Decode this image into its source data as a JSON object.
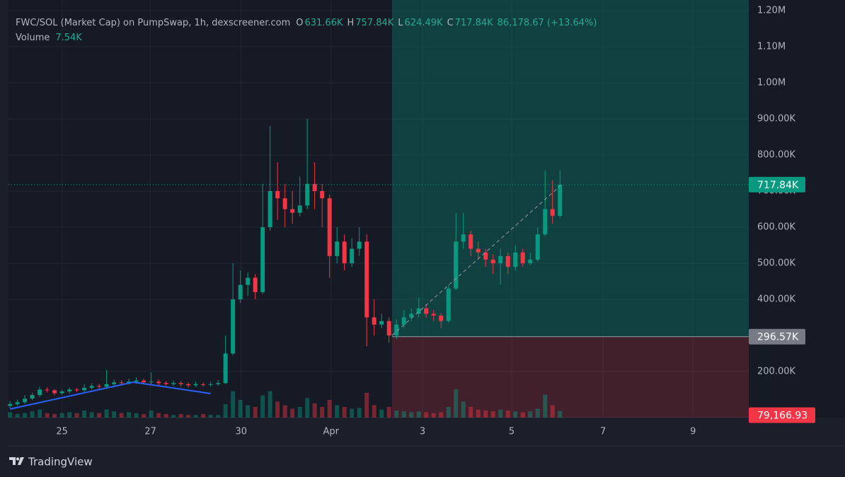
{
  "chart_data": {
    "type": "candlestick",
    "title": "FWC/SOL (Market Cap) on PumpSwap, 1h, dexscreener.com",
    "readout": [
      {
        "key": "O",
        "value": 631660,
        "label": "631.66K"
      },
      {
        "key": "H",
        "value": 757840,
        "label": "757.84K"
      },
      {
        "key": "L",
        "value": 624490,
        "label": "624.49K"
      },
      {
        "key": "C",
        "value": 717840,
        "label": "717.84K"
      }
    ],
    "change": {
      "value": 86178.67,
      "label": "86,178.67"
    },
    "change_pct": {
      "value": 13.64,
      "label": "(+13.64%)"
    },
    "volume_readout": {
      "name": "Volume",
      "value": 7540,
      "label": "7.54K"
    },
    "up_color": "#089981",
    "down_color": "#f23645",
    "open": [
      105000,
      110000,
      115000,
      125000,
      135000,
      150000,
      148000,
      140000,
      145000,
      150000,
      148000,
      155000,
      160000,
      158000,
      165000,
      170000,
      168000,
      172000,
      175000,
      170000,
      172000,
      168000,
      165000,
      168000,
      165000,
      162000,
      165000,
      163000,
      165000,
      168000,
      250000,
      400000,
      440000,
      460000,
      420000,
      600000,
      700000,
      680000,
      650000,
      640000,
      660000,
      720000,
      700000,
      680000,
      520000,
      560000,
      500000,
      540000,
      560000,
      350000,
      330000,
      340000,
      300000,
      330000,
      350000,
      360000,
      375000,
      360000,
      355000,
      340000,
      430000,
      560000,
      580000,
      540000,
      530000,
      510000,
      500000,
      520000,
      490000,
      530000,
      500000,
      510000,
      580000,
      650000,
      631660
    ],
    "high": [
      118000,
      122000,
      135000,
      142000,
      158000,
      156000,
      152000,
      150000,
      156000,
      155000,
      165000,
      168000,
      166000,
      205000,
      178000,
      176000,
      180000,
      184000,
      180000,
      198000,
      178000,
      174000,
      175000,
      174000,
      170000,
      172000,
      170000,
      172000,
      176000,
      300000,
      500000,
      480000,
      475000,
      470000,
      720000,
      880000,
      780000,
      720000,
      700000,
      740000,
      900000,
      780000,
      720000,
      690000,
      600000,
      580000,
      570000,
      600000,
      580000,
      400000,
      360000,
      350000,
      345000,
      370000,
      375000,
      405000,
      385000,
      370000,
      362000,
      440000,
      640000,
      640000,
      590000,
      560000,
      540000,
      525000,
      540000,
      530000,
      550000,
      540000,
      530000,
      600000,
      757000,
      730000,
      757840
    ],
    "low": [
      98000,
      105000,
      110000,
      120000,
      130000,
      142000,
      134000,
      136000,
      140000,
      143000,
      144000,
      150000,
      152000,
      154000,
      160000,
      162000,
      164000,
      166000,
      164000,
      165000,
      162000,
      160000,
      160000,
      158000,
      156000,
      157000,
      158000,
      158000,
      160000,
      165000,
      245000,
      390000,
      410000,
      400000,
      415000,
      590000,
      620000,
      600000,
      610000,
      630000,
      650000,
      650000,
      600000,
      460000,
      500000,
      480000,
      490000,
      520000,
      270000,
      300000,
      320000,
      280000,
      290000,
      320000,
      340000,
      350000,
      350000,
      340000,
      320000,
      335000,
      425000,
      540000,
      520000,
      510000,
      490000,
      470000,
      440000,
      470000,
      480000,
      490000,
      495000,
      505000,
      575000,
      610000,
      624490
    ],
    "close": [
      110000,
      115000,
      125000,
      135000,
      150000,
      148000,
      140000,
      145000,
      150000,
      148000,
      155000,
      160000,
      158000,
      165000,
      170000,
      168000,
      172000,
      175000,
      170000,
      172000,
      168000,
      165000,
      168000,
      165000,
      162000,
      165000,
      163000,
      165000,
      168000,
      250000,
      400000,
      440000,
      460000,
      420000,
      600000,
      700000,
      680000,
      650000,
      640000,
      660000,
      720000,
      700000,
      680000,
      520000,
      560000,
      500000,
      540000,
      560000,
      350000,
      330000,
      340000,
      300000,
      330000,
      350000,
      360000,
      375000,
      360000,
      355000,
      340000,
      430000,
      560000,
      580000,
      540000,
      530000,
      510000,
      500000,
      520000,
      490000,
      530000,
      500000,
      510000,
      580000,
      650000,
      631660,
      717840
    ],
    "volume": [
      6000,
      4000,
      5000,
      7000,
      9000,
      5000,
      4000,
      5000,
      6000,
      5000,
      8000,
      6000,
      5000,
      9000,
      7000,
      5000,
      6000,
      5000,
      4000,
      8000,
      5000,
      4000,
      3000,
      4000,
      3000,
      3000,
      4000,
      3000,
      3000,
      15000,
      30000,
      20000,
      14000,
      12000,
      25000,
      30000,
      18000,
      14000,
      10000,
      12000,
      22000,
      16000,
      12000,
      20000,
      14000,
      12000,
      10000,
      11000,
      28000,
      14000,
      9000,
      12000,
      8000,
      7000,
      6000,
      7000,
      6000,
      5000,
      6000,
      12000,
      32000,
      18000,
      12000,
      9000,
      8000,
      7000,
      9000,
      8000,
      7000,
      6000,
      7000,
      10000,
      26000,
      14000,
      7540
    ],
    "vlim": [
      0,
      64000
    ],
    "xlim": [
      -0.2,
      99.4
    ],
    "xticks": [
      {
        "value": 7,
        "label": "25"
      },
      {
        "value": 18.9,
        "label": "27"
      },
      {
        "value": 31.1,
        "label": "30"
      },
      {
        "value": 43.2,
        "label": "Apr"
      },
      {
        "value": 55.5,
        "label": "3"
      },
      {
        "value": 67.5,
        "label": "5"
      },
      {
        "value": 79.8,
        "label": "7"
      },
      {
        "value": 91.9,
        "label": "9"
      }
    ],
    "ylim": [
      72500,
      1202000
    ],
    "yticks": [
      {
        "value": 200000,
        "label": "200.00K"
      },
      {
        "value": 400000,
        "label": "400.00K"
      },
      {
        "value": 500000,
        "label": "500.00K"
      },
      {
        "value": 600000,
        "label": "600.00K"
      },
      {
        "value": 700000,
        "label": "700.00K"
      },
      {
        "value": 800000,
        "label": "800.00K"
      },
      {
        "value": 900000,
        "label": "900.00K"
      },
      {
        "value": 1000000,
        "label": "1.00M"
      },
      {
        "value": 1100000,
        "label": "1.10M"
      },
      {
        "value": 1200000,
        "label": "1.20M"
      }
    ],
    "grid": true,
    "last_price": {
      "value": 717840,
      "label": "717.84K",
      "color": "#089981"
    },
    "position": {
      "x_start": 51.4,
      "entry": {
        "value": 296570,
        "label": "296.57K",
        "color": "#787b86"
      },
      "stop": {
        "value": 79166.93,
        "label": "79,166.93",
        "color": "#f23645"
      },
      "projection": {
        "x": [
          51.4,
          74.1
        ],
        "y": [
          300000,
          715700
        ]
      }
    },
    "trend_line": {
      "x": [
        0,
        16.6,
        27
      ],
      "y": [
        96000,
        170600,
        139000
      ],
      "color": "#2962ff"
    },
    "brand": "TradingView"
  }
}
